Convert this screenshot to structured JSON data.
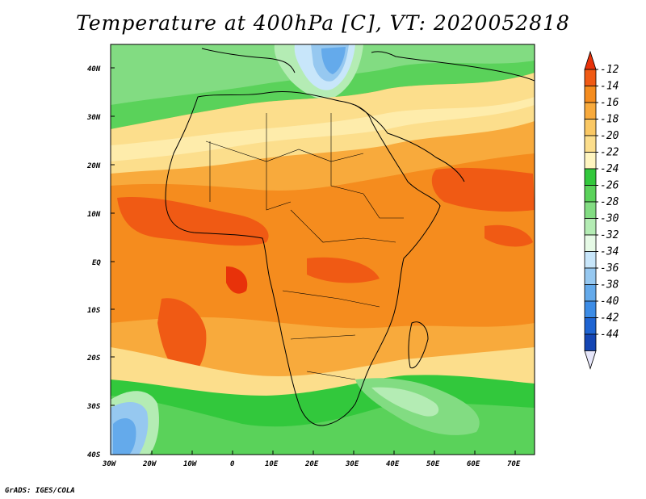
{
  "title": "Temperature at 400hPa [C], VT: 2020052818",
  "footer": "GrADS: IGES/COLA",
  "map": {
    "lat_labels": [
      "40N",
      "30N",
      "20N",
      "10N",
      "EQ",
      "10S",
      "20S",
      "30S",
      "40S"
    ],
    "lon_labels": [
      "30W",
      "20W",
      "10W",
      "0",
      "10E",
      "20E",
      "30E",
      "40E",
      "50E",
      "60E",
      "70E"
    ]
  },
  "colorbar": {
    "labels": [
      "-12",
      "-14",
      "-16",
      "-18",
      "-20",
      "-22",
      "-24",
      "-26",
      "-28",
      "-30",
      "-32",
      "-34",
      "-36",
      "-38",
      "-40",
      "-42",
      "-44"
    ],
    "colors": [
      "#e8320a",
      "#f05a14",
      "#f58c1e",
      "#f8aa3c",
      "#fac864",
      "#fcde8c",
      "#fff5c0",
      "#32c83c",
      "#5ad25a",
      "#82dc82",
      "#b4ecb4",
      "#e6fae6",
      "#c8e6fa",
      "#96c8f0",
      "#64aaeb",
      "#3c8ce6",
      "#1e64d2",
      "#1446b4",
      "#0a1e78"
    ]
  }
}
